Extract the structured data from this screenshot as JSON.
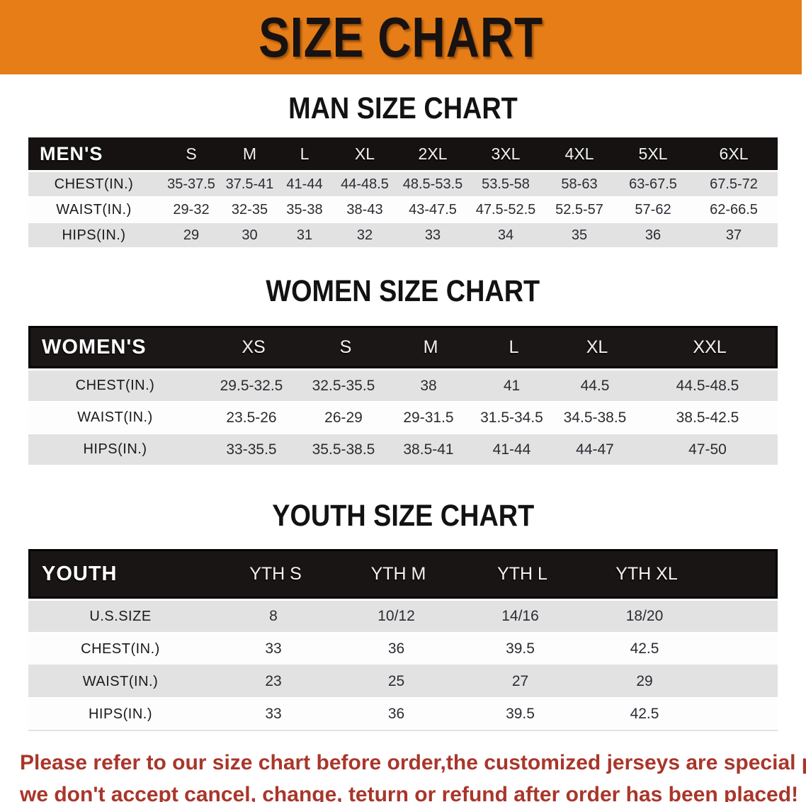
{
  "banner": {
    "title": "SIZE CHART",
    "bg_color": "#E67D17",
    "text_color": "#181210"
  },
  "colors": {
    "header_black": "#161212",
    "row_gray": "#e3e2e2",
    "row_white": "#fdfdfd",
    "footer_red": "#a9362b"
  },
  "tables": [
    {
      "id": "men",
      "title": "MAN SIZE CHART",
      "header_label": "MEN'S",
      "sizes": [
        "S",
        "M",
        "L",
        "XL",
        "2XL",
        "3XL",
        "4XL",
        "5XL",
        "6XL"
      ],
      "rows": [
        {
          "label": "CHEST(IN.)",
          "values": [
            "35-37.5",
            "37.5-41",
            "41-44",
            "44-48.5",
            "48.5-53.5",
            "53.5-58",
            "58-63",
            "63-67.5",
            "67.5-72"
          ]
        },
        {
          "label": "WAIST(IN.)",
          "values": [
            "29-32",
            "32-35",
            "35-38",
            "38-43",
            "43-47.5",
            "47.5-52.5",
            "52.5-57",
            "57-62",
            "62-66.5"
          ]
        },
        {
          "label": "HIPS(IN.)",
          "values": [
            "29",
            "30",
            "31",
            "32",
            "33",
            "34",
            "35",
            "36",
            "37"
          ]
        }
      ]
    },
    {
      "id": "women",
      "title": "WOMEN SIZE CHART",
      "header_label": "WOMEN'S",
      "sizes": [
        "XS",
        "S",
        "M",
        "L",
        "XL",
        "XXL"
      ],
      "rows": [
        {
          "label": "CHEST(IN.)",
          "values": [
            "29.5-32.5",
            "32.5-35.5",
            "38",
            "41",
            "44.5",
            "44.5-48.5"
          ]
        },
        {
          "label": "WAIST(IN.)",
          "values": [
            "23.5-26",
            "26-29",
            "29-31.5",
            "31.5-34.5",
            "34.5-38.5",
            "38.5-42.5"
          ]
        },
        {
          "label": "HIPS(IN.)",
          "values": [
            "33-35.5",
            "35.5-38.5",
            "38.5-41",
            "41-44",
            "44-47",
            "47-50"
          ]
        }
      ]
    },
    {
      "id": "youth",
      "title": "YOUTH SIZE CHART",
      "header_label": "YOUTH",
      "sizes": [
        "YTH S",
        "YTH M",
        "YTH L",
        "YTH XL"
      ],
      "rows": [
        {
          "label": "U.S.SIZE",
          "values": [
            "8",
            "10/12",
            "14/16",
            "18/20"
          ]
        },
        {
          "label": "CHEST(IN.)",
          "values": [
            "33",
            "36",
            "39.5",
            "42.5"
          ]
        },
        {
          "label": "WAIST(IN.)",
          "values": [
            "23",
            "25",
            "27",
            "29"
          ]
        },
        {
          "label": "HIPS(IN.)",
          "values": [
            "33",
            "36",
            "39.5",
            "42.5"
          ]
        }
      ]
    }
  ],
  "footer": {
    "line1": "Please refer to our size chart before order,the customized jerseys are special products,",
    "line2": "we don't accept cancel, change, teturn or refund after order has been placed!"
  }
}
